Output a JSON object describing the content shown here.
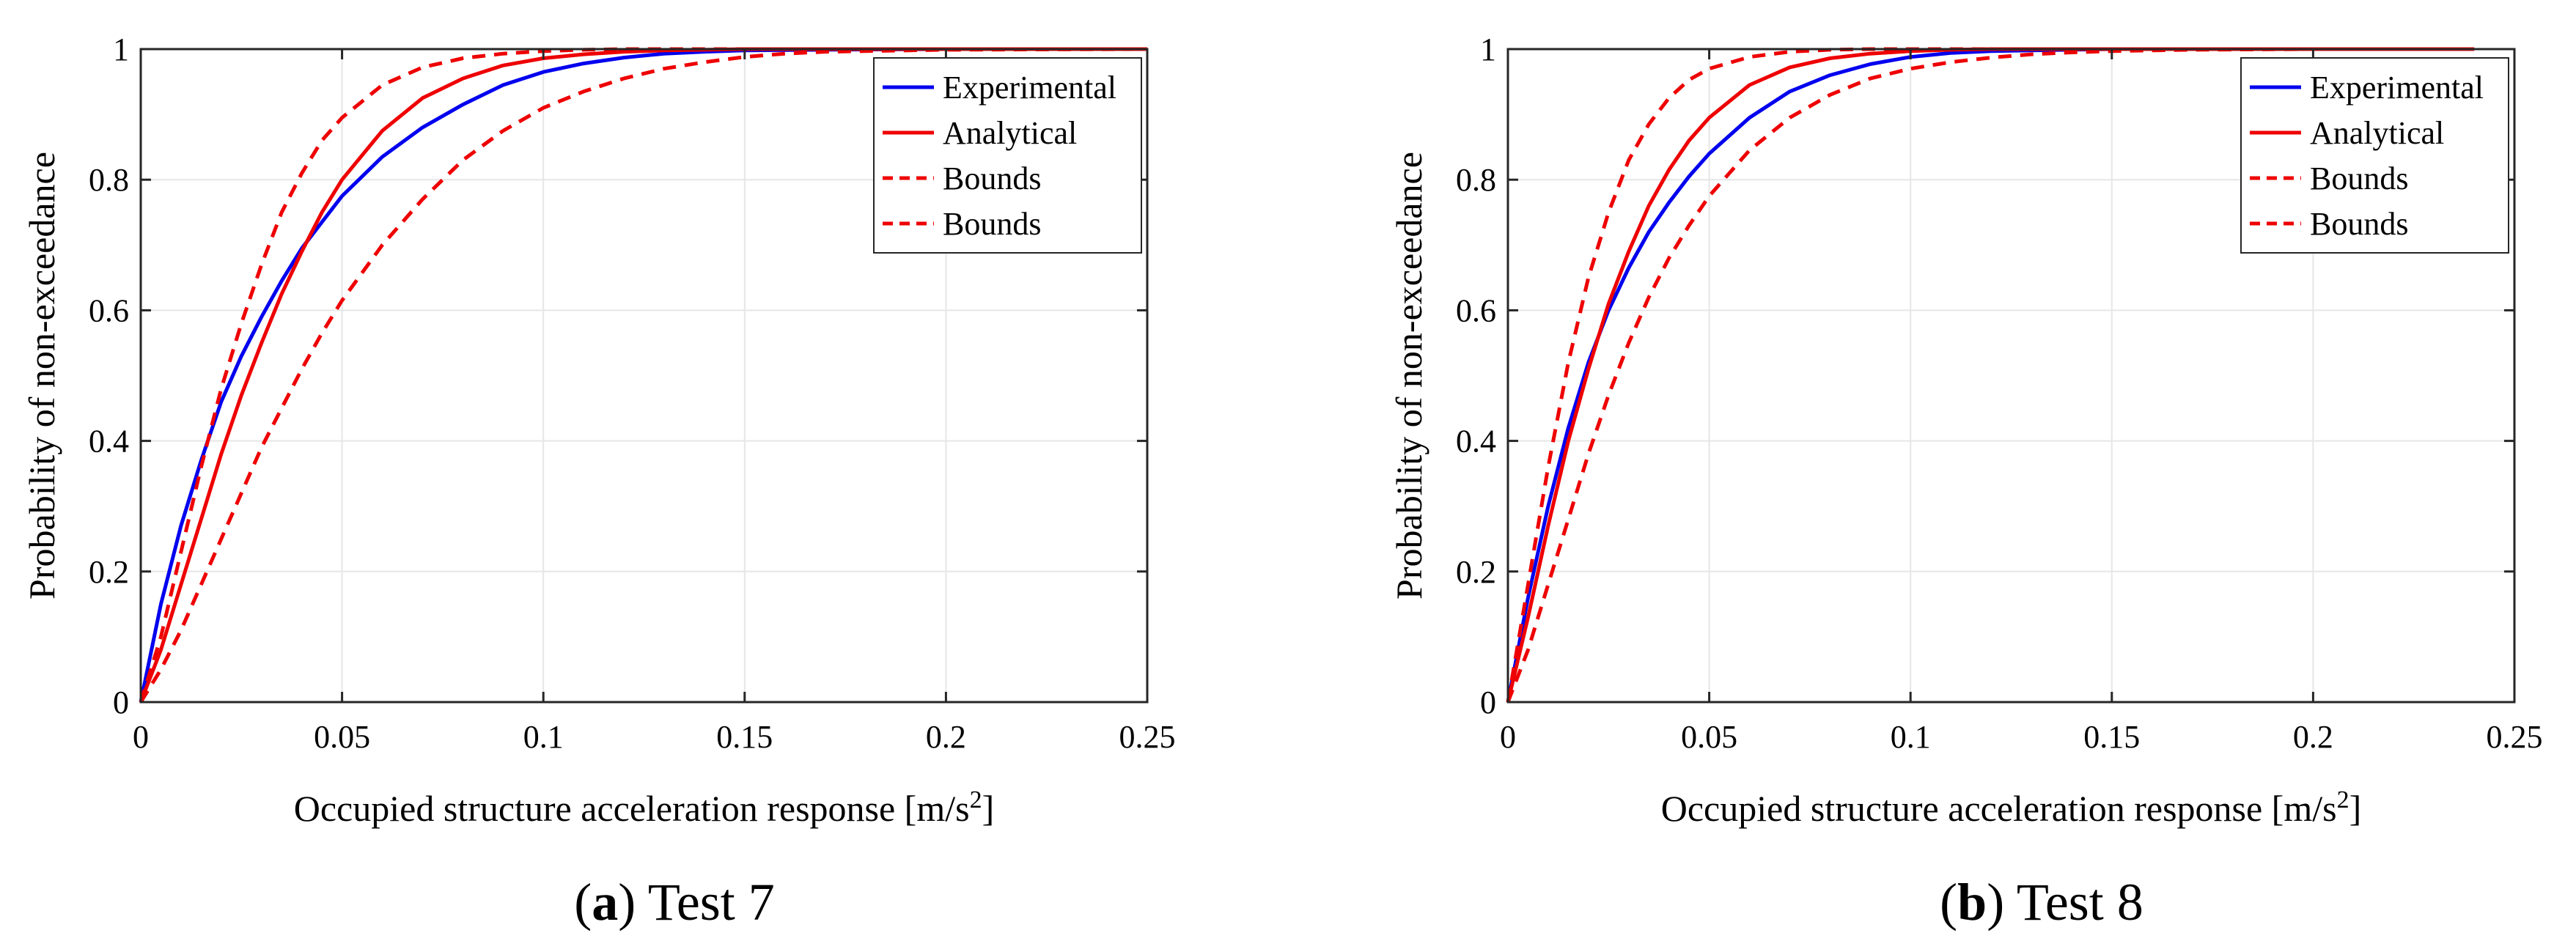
{
  "figure": {
    "panels": [
      {
        "caption_letter": "a",
        "caption_text": ") Test 7"
      },
      {
        "caption_letter": "b",
        "caption_text": ") Test 8"
      }
    ]
  },
  "chart_data": [
    {
      "type": "line",
      "panel": "a",
      "title": "",
      "caption": "(a) Test 7",
      "xlabel": "Occupied structure acceleration response [m/s",
      "xlabel_superscript": "2",
      "xlabel_suffix": "]",
      "ylabel": "Probability of non-exceedance",
      "xlim": [
        0,
        0.25
      ],
      "ylim": [
        0,
        1
      ],
      "xticks": [
        "0",
        "0.05",
        "0.1",
        "0.15",
        "0.2",
        "0.25"
      ],
      "yticks": [
        "0",
        "0.2",
        "0.4",
        "0.6",
        "0.8",
        "1"
      ],
      "grid": true,
      "legend_position": "top-right",
      "series": [
        {
          "name": "Experimental",
          "color": "#0000ee",
          "dash": "solid",
          "x": [
            0,
            0.005,
            0.01,
            0.015,
            0.02,
            0.025,
            0.03,
            0.035,
            0.04,
            0.045,
            0.05,
            0.06,
            0.07,
            0.08,
            0.09,
            0.1,
            0.11,
            0.12,
            0.13,
            0.14,
            0.15,
            0.17,
            0.2,
            0.25
          ],
          "y": [
            0,
            0.15,
            0.27,
            0.37,
            0.46,
            0.53,
            0.59,
            0.645,
            0.695,
            0.735,
            0.775,
            0.835,
            0.88,
            0.915,
            0.945,
            0.965,
            0.978,
            0.987,
            0.993,
            0.996,
            0.998,
            0.999,
            1,
            1
          ]
        },
        {
          "name": "Analytical",
          "color": "#ee0000",
          "dash": "solid",
          "x": [
            0,
            0.005,
            0.01,
            0.015,
            0.02,
            0.025,
            0.03,
            0.035,
            0.04,
            0.045,
            0.05,
            0.06,
            0.07,
            0.08,
            0.09,
            0.1,
            0.11,
            0.12,
            0.13,
            0.14,
            0.15,
            0.17,
            0.2,
            0.25
          ],
          "y": [
            0,
            0.08,
            0.18,
            0.28,
            0.38,
            0.47,
            0.55,
            0.625,
            0.69,
            0.75,
            0.8,
            0.875,
            0.925,
            0.955,
            0.975,
            0.986,
            0.992,
            0.996,
            0.998,
            0.999,
            1,
            1,
            1,
            1
          ]
        },
        {
          "name": "Bounds",
          "color": "#ee0000",
          "dash": "dashed",
          "x": [
            0,
            0.005,
            0.01,
            0.015,
            0.02,
            0.025,
            0.03,
            0.035,
            0.04,
            0.045,
            0.05,
            0.06,
            0.07,
            0.08,
            0.09,
            0.1,
            0.11,
            0.12,
            0.14,
            0.17,
            0.2,
            0.25
          ],
          "y": [
            0,
            0.1,
            0.23,
            0.36,
            0.48,
            0.58,
            0.67,
            0.75,
            0.81,
            0.86,
            0.895,
            0.945,
            0.972,
            0.986,
            0.993,
            0.997,
            0.999,
            1,
            1,
            1,
            1,
            1
          ]
        },
        {
          "name": "Bounds",
          "color": "#ee0000",
          "dash": "dashed",
          "x": [
            0,
            0.005,
            0.01,
            0.015,
            0.02,
            0.025,
            0.03,
            0.035,
            0.04,
            0.045,
            0.05,
            0.06,
            0.07,
            0.08,
            0.09,
            0.1,
            0.11,
            0.12,
            0.13,
            0.14,
            0.15,
            0.16,
            0.17,
            0.2,
            0.25
          ],
          "y": [
            0,
            0.05,
            0.11,
            0.18,
            0.25,
            0.32,
            0.39,
            0.45,
            0.51,
            0.565,
            0.615,
            0.7,
            0.77,
            0.83,
            0.875,
            0.91,
            0.935,
            0.955,
            0.97,
            0.98,
            0.988,
            0.993,
            0.996,
            0.999,
            1
          ]
        }
      ]
    },
    {
      "type": "line",
      "panel": "b",
      "title": "",
      "caption": "(b) Test 8",
      "xlabel": "Occupied structure acceleration response [m/s",
      "xlabel_superscript": "2",
      "xlabel_suffix": "]",
      "ylabel": "Probability of non-exceedance",
      "xlim": [
        0,
        0.25
      ],
      "ylim": [
        0,
        1
      ],
      "xticks": [
        "0",
        "0.05",
        "0.1",
        "0.15",
        "0.2",
        "0.25"
      ],
      "yticks": [
        "0",
        "0.2",
        "0.4",
        "0.6",
        "0.8",
        "1"
      ],
      "grid": true,
      "legend_position": "top-right",
      "series": [
        {
          "name": "Experimental",
          "color": "#0000ee",
          "dash": "solid",
          "x": [
            0,
            0.005,
            0.01,
            0.015,
            0.02,
            0.025,
            0.03,
            0.035,
            0.04,
            0.045,
            0.05,
            0.06,
            0.07,
            0.08,
            0.09,
            0.1,
            0.11,
            0.12,
            0.13,
            0.14,
            0.15,
            0.17,
            0.2,
            0.24
          ],
          "y": [
            0,
            0.16,
            0.3,
            0.42,
            0.52,
            0.6,
            0.665,
            0.72,
            0.765,
            0.805,
            0.84,
            0.895,
            0.935,
            0.96,
            0.977,
            0.988,
            0.994,
            0.997,
            0.998,
            0.999,
            1,
            1,
            1,
            1
          ]
        },
        {
          "name": "Analytical",
          "color": "#ee0000",
          "dash": "solid",
          "x": [
            0,
            0.005,
            0.01,
            0.015,
            0.02,
            0.025,
            0.03,
            0.035,
            0.04,
            0.045,
            0.05,
            0.06,
            0.07,
            0.08,
            0.09,
            0.1,
            0.11,
            0.12,
            0.13,
            0.15,
            0.17,
            0.2,
            0.24
          ],
          "y": [
            0,
            0.13,
            0.27,
            0.4,
            0.51,
            0.61,
            0.69,
            0.76,
            0.815,
            0.86,
            0.895,
            0.945,
            0.972,
            0.986,
            0.993,
            0.997,
            0.999,
            1,
            1,
            1,
            1,
            1,
            1
          ]
        },
        {
          "name": "Bounds",
          "color": "#ee0000",
          "dash": "dashed",
          "x": [
            0,
            0.005,
            0.01,
            0.015,
            0.02,
            0.025,
            0.03,
            0.035,
            0.04,
            0.045,
            0.05,
            0.06,
            0.07,
            0.08,
            0.09,
            0.1,
            0.12,
            0.15,
            0.2,
            0.24
          ],
          "y": [
            0,
            0.18,
            0.36,
            0.52,
            0.65,
            0.75,
            0.83,
            0.885,
            0.925,
            0.953,
            0.97,
            0.988,
            0.996,
            0.999,
            1,
            1,
            1,
            1,
            1,
            1
          ]
        },
        {
          "name": "Bounds",
          "color": "#ee0000",
          "dash": "dashed",
          "x": [
            0,
            0.005,
            0.01,
            0.015,
            0.02,
            0.025,
            0.03,
            0.035,
            0.04,
            0.045,
            0.05,
            0.06,
            0.07,
            0.08,
            0.09,
            0.1,
            0.11,
            0.12,
            0.13,
            0.14,
            0.15,
            0.16,
            0.17,
            0.2,
            0.24
          ],
          "y": [
            0,
            0.08,
            0.18,
            0.28,
            0.38,
            0.47,
            0.55,
            0.62,
            0.68,
            0.73,
            0.775,
            0.845,
            0.895,
            0.93,
            0.955,
            0.97,
            0.98,
            0.987,
            0.992,
            0.995,
            0.997,
            0.998,
            0.999,
            1,
            1
          ]
        }
      ]
    }
  ]
}
